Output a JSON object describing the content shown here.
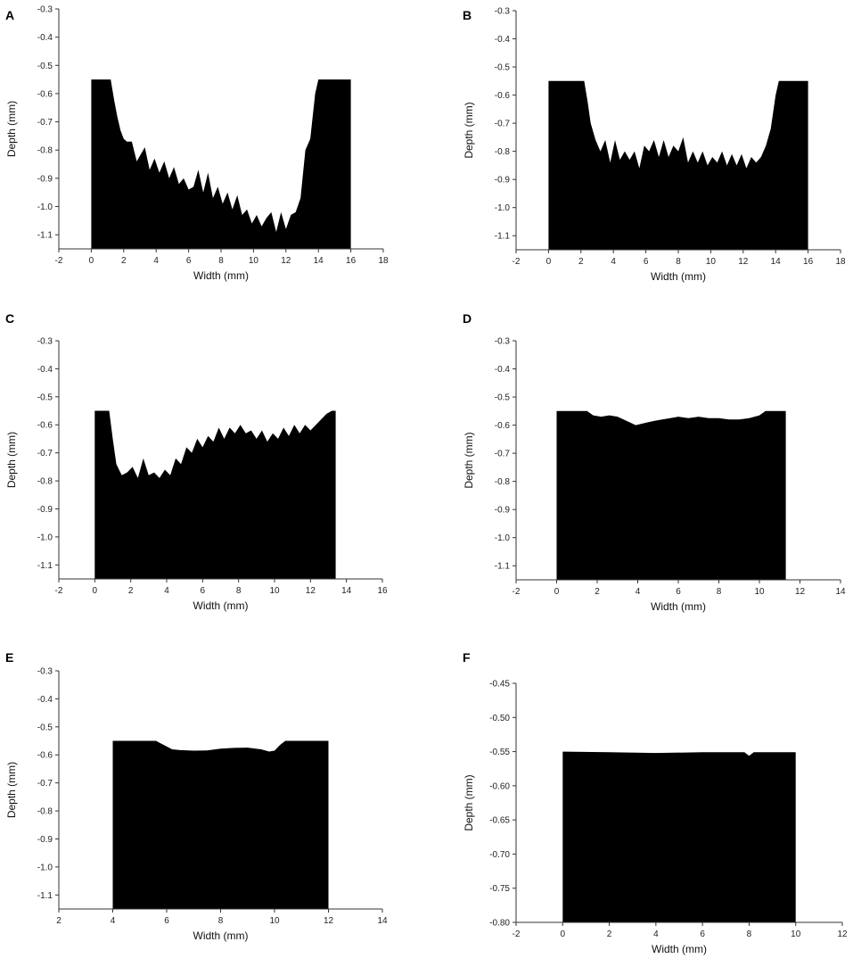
{
  "figure": {
    "background": "#ffffff",
    "fill_color": "#000000"
  },
  "chart_data": [
    {
      "panel": "A",
      "type": "area",
      "xlabel": "Width (mm)",
      "ylabel": "Depth (mm)",
      "xlim": [
        -2,
        18
      ],
      "ylim": [
        -1.15,
        -0.3
      ],
      "xticks": [
        "-2",
        "0",
        "2",
        "4",
        "6",
        "8",
        "10",
        "12",
        "14",
        "16",
        "18"
      ],
      "yticks": [
        "-0.3",
        "-0.4",
        "-0.5",
        "-0.6",
        "-0.7",
        "-0.8",
        "-0.9",
        "-1.0",
        "-1.1"
      ],
      "x": [
        0,
        1.2,
        1.4,
        1.6,
        1.8,
        2.0,
        2.2,
        2.5,
        2.8,
        3.0,
        3.3,
        3.6,
        3.9,
        4.2,
        4.5,
        4.8,
        5.1,
        5.4,
        5.7,
        6.0,
        6.3,
        6.6,
        6.9,
        7.2,
        7.5,
        7.8,
        8.1,
        8.4,
        8.7,
        9.0,
        9.3,
        9.6,
        9.9,
        10.2,
        10.5,
        10.8,
        11.1,
        11.4,
        11.7,
        12.0,
        12.3,
        12.6,
        12.9,
        13.2,
        13.5,
        13.8,
        14.0,
        14.2,
        16
      ],
      "y": [
        -0.55,
        -0.55,
        -0.62,
        -0.68,
        -0.73,
        -0.76,
        -0.77,
        -0.77,
        -0.84,
        -0.82,
        -0.79,
        -0.87,
        -0.83,
        -0.88,
        -0.84,
        -0.9,
        -0.86,
        -0.92,
        -0.9,
        -0.94,
        -0.93,
        -0.87,
        -0.95,
        -0.88,
        -0.97,
        -0.93,
        -0.99,
        -0.95,
        -1.01,
        -0.96,
        -1.03,
        -1.01,
        -1.06,
        -1.03,
        -1.07,
        -1.04,
        -1.02,
        -1.09,
        -1.02,
        -1.08,
        -1.03,
        -1.02,
        -0.97,
        -0.8,
        -0.76,
        -0.6,
        -0.55,
        -0.55,
        -0.55
      ]
    },
    {
      "panel": "B",
      "type": "area",
      "xlabel": "Width (mm)",
      "ylabel": "Depth (mm)",
      "xlim": [
        -2,
        18
      ],
      "ylim": [
        -1.15,
        -0.3
      ],
      "xticks": [
        "-2",
        "0",
        "2",
        "4",
        "6",
        "8",
        "10",
        "12",
        "14",
        "16",
        "18"
      ],
      "yticks": [
        "-0.3",
        "-0.4",
        "-0.5",
        "-0.6",
        "-0.7",
        "-0.8",
        "-0.9",
        "-1.0",
        "-1.1"
      ],
      "x": [
        0,
        2.2,
        2.4,
        2.6,
        2.9,
        3.2,
        3.5,
        3.8,
        4.1,
        4.4,
        4.7,
        5.0,
        5.3,
        5.6,
        5.9,
        6.2,
        6.5,
        6.8,
        7.1,
        7.4,
        7.7,
        8.0,
        8.3,
        8.6,
        8.9,
        9.2,
        9.5,
        9.8,
        10.1,
        10.4,
        10.7,
        11.0,
        11.3,
        11.6,
        11.9,
        12.2,
        12.5,
        12.8,
        13.1,
        13.4,
        13.7,
        14.0,
        14.2,
        14.4,
        16
      ],
      "y": [
        -0.55,
        -0.55,
        -0.62,
        -0.7,
        -0.76,
        -0.8,
        -0.76,
        -0.84,
        -0.76,
        -0.83,
        -0.8,
        -0.83,
        -0.8,
        -0.86,
        -0.78,
        -0.8,
        -0.76,
        -0.82,
        -0.76,
        -0.82,
        -0.78,
        -0.8,
        -0.75,
        -0.84,
        -0.8,
        -0.84,
        -0.8,
        -0.85,
        -0.82,
        -0.84,
        -0.8,
        -0.85,
        -0.81,
        -0.85,
        -0.81,
        -0.86,
        -0.82,
        -0.84,
        -0.82,
        -0.78,
        -0.72,
        -0.6,
        -0.55,
        -0.55,
        -0.55
      ]
    },
    {
      "panel": "C",
      "type": "area",
      "xlabel": "Width (mm)",
      "ylabel": "Depth (mm)",
      "xlim": [
        -2,
        16
      ],
      "ylim": [
        -1.15,
        -0.3
      ],
      "xticks": [
        "-2",
        "0",
        "2",
        "4",
        "6",
        "8",
        "10",
        "12",
        "14",
        "16"
      ],
      "yticks": [
        "-0.3",
        "-0.4",
        "-0.5",
        "-0.6",
        "-0.7",
        "-0.8",
        "-0.9",
        "-1.0",
        "-1.1"
      ],
      "x": [
        0,
        0.8,
        1.0,
        1.2,
        1.5,
        1.8,
        2.1,
        2.4,
        2.7,
        3.0,
        3.3,
        3.6,
        3.9,
        4.2,
        4.5,
        4.8,
        5.1,
        5.4,
        5.7,
        6.0,
        6.3,
        6.6,
        6.9,
        7.2,
        7.5,
        7.8,
        8.1,
        8.4,
        8.7,
        9.0,
        9.3,
        9.6,
        9.9,
        10.2,
        10.5,
        10.8,
        11.1,
        11.4,
        11.7,
        12.0,
        12.3,
        12.6,
        12.9,
        13.2,
        13.4
      ],
      "y": [
        -0.55,
        -0.55,
        -0.65,
        -0.74,
        -0.78,
        -0.77,
        -0.75,
        -0.79,
        -0.72,
        -0.78,
        -0.77,
        -0.79,
        -0.76,
        -0.78,
        -0.72,
        -0.74,
        -0.68,
        -0.7,
        -0.65,
        -0.68,
        -0.64,
        -0.66,
        -0.61,
        -0.65,
        -0.61,
        -0.63,
        -0.6,
        -0.63,
        -0.62,
        -0.65,
        -0.62,
        -0.66,
        -0.63,
        -0.65,
        -0.61,
        -0.64,
        -0.6,
        -0.63,
        -0.6,
        -0.62,
        -0.6,
        -0.58,
        -0.56,
        -0.55,
        -0.55
      ]
    },
    {
      "panel": "D",
      "type": "area",
      "xlabel": "Width (mm)",
      "ylabel": "Depth (mm)",
      "xlim": [
        -2,
        14
      ],
      "ylim": [
        -1.15,
        -0.3
      ],
      "xticks": [
        "-2",
        "0",
        "2",
        "4",
        "6",
        "8",
        "10",
        "12",
        "14"
      ],
      "yticks": [
        "-0.3",
        "-0.4",
        "-0.5",
        "-0.6",
        "-0.7",
        "-0.8",
        "-0.9",
        "-1.0",
        "-1.1"
      ],
      "x": [
        0,
        1.5,
        1.8,
        2.2,
        2.6,
        3.0,
        3.3,
        3.6,
        3.9,
        4.2,
        4.5,
        4.8,
        5.2,
        5.6,
        6.0,
        6.5,
        7.0,
        7.5,
        8.0,
        8.5,
        9.0,
        9.5,
        10.0,
        10.3,
        11.3
      ],
      "y": [
        -0.55,
        -0.55,
        -0.565,
        -0.57,
        -0.565,
        -0.57,
        -0.58,
        -0.59,
        -0.6,
        -0.595,
        -0.59,
        -0.585,
        -0.58,
        -0.575,
        -0.57,
        -0.575,
        -0.57,
        -0.575,
        -0.575,
        -0.58,
        -0.58,
        -0.575,
        -0.565,
        -0.55,
        -0.55
      ]
    },
    {
      "panel": "E",
      "type": "area",
      "xlabel": "Width (mm)",
      "ylabel": "Depth (mm)",
      "xlim": [
        2,
        14
      ],
      "ylim": [
        -1.15,
        -0.3
      ],
      "xticks": [
        "2",
        "4",
        "6",
        "8",
        "10",
        "12",
        "14"
      ],
      "yticks": [
        "-0.3",
        "-0.4",
        "-0.5",
        "-0.6",
        "-0.7",
        "-0.8",
        "-0.9",
        "-1.0",
        "-1.1"
      ],
      "x": [
        4,
        5.6,
        5.9,
        6.2,
        6.5,
        7.0,
        7.5,
        8.0,
        8.5,
        9.0,
        9.5,
        9.8,
        10.0,
        10.2,
        10.4,
        12
      ],
      "y": [
        -0.55,
        -0.55,
        -0.565,
        -0.58,
        -0.583,
        -0.585,
        -0.584,
        -0.578,
        -0.575,
        -0.574,
        -0.58,
        -0.588,
        -0.585,
        -0.565,
        -0.55,
        -0.55
      ]
    },
    {
      "panel": "F",
      "type": "area",
      "xlabel": "Width (mm)",
      "ylabel": "Depth (mm)",
      "xlim": [
        -2,
        12
      ],
      "ylim": [
        -0.8,
        -0.45
      ],
      "xticks": [
        "-2",
        "0",
        "2",
        "4",
        "6",
        "8",
        "10",
        "12"
      ],
      "yticks": [
        "-0.45",
        "-0.50",
        "-0.55",
        "-0.60",
        "-0.65",
        "-0.70",
        "-0.75",
        "-0.80"
      ],
      "x": [
        0,
        2,
        4,
        6,
        7.8,
        8.0,
        8.2,
        10
      ],
      "y": [
        -0.55,
        -0.551,
        -0.552,
        -0.551,
        -0.551,
        -0.556,
        -0.551,
        -0.551
      ]
    }
  ]
}
